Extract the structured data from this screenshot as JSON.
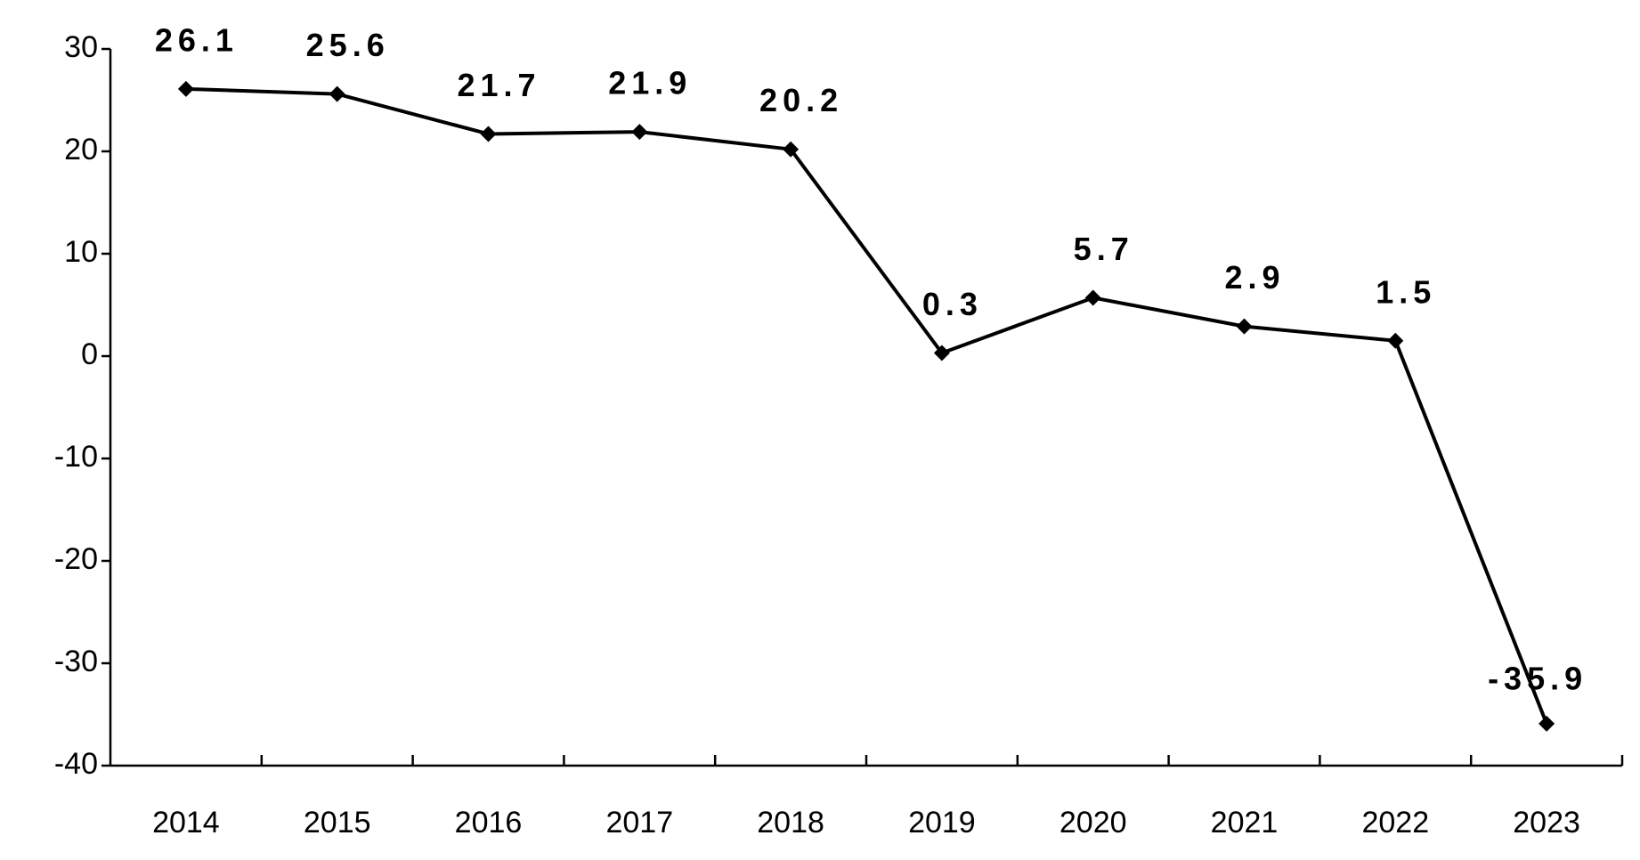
{
  "chart_data": {
    "type": "line",
    "categories": [
      "2014",
      "2015",
      "2016",
      "2017",
      "2018",
      "2019",
      "2020",
      "2021",
      "2022",
      "2023"
    ],
    "values": [
      26.1,
      25.6,
      21.7,
      21.9,
      20.2,
      0.3,
      5.7,
      2.9,
      1.5,
      -35.9
    ],
    "color": "#000000",
    "ylim": [
      -40,
      30
    ],
    "yticks": [
      -40,
      -30,
      -20,
      -10,
      0,
      10,
      20,
      30
    ],
    "grid": false
  }
}
